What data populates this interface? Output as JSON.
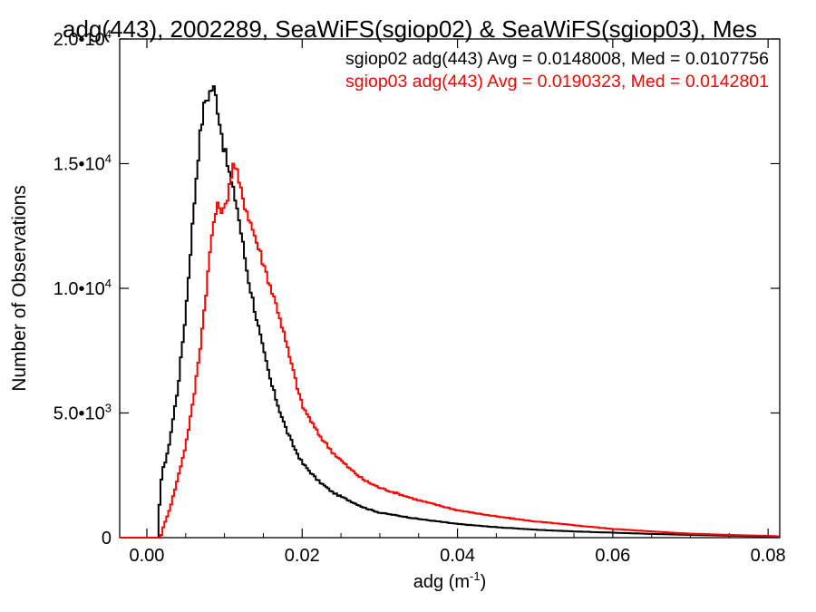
{
  "chart_data": {
    "type": "line",
    "title": "adg(443), 2002289, SeaWiFS(sgiop02) & SeaWiFS(sgiop03), Mes",
    "xlabel": "adg (m",
    "xlabel_sup": "-1",
    "xlabel_tail": ")",
    "ylabel": "Number of Observations",
    "xlim": [
      -0.0035,
      0.0815
    ],
    "ylim": [
      0,
      20000
    ],
    "x_ticks": [
      {
        "value": 0.0,
        "label": "0.00"
      },
      {
        "value": 0.02,
        "label": "0.02"
      },
      {
        "value": 0.04,
        "label": "0.04"
      },
      {
        "value": 0.06,
        "label": "0.06"
      },
      {
        "value": 0.08,
        "label": "0.08"
      }
    ],
    "y_ticks": [
      {
        "value": 0,
        "mant": "0",
        "exp": ""
      },
      {
        "value": 5000,
        "mant": "5.0•10",
        "exp": "3"
      },
      {
        "value": 10000,
        "mant": "1.0•10",
        "exp": "4"
      },
      {
        "value": 15000,
        "mant": "1.5•10",
        "exp": "4"
      },
      {
        "value": 20000,
        "mant": "2.0•10",
        "exp": "4"
      }
    ],
    "grid": false,
    "legend_position": "top-right",
    "series": [
      {
        "name": "sgiop02 adg(443) Avg = 0.0148008, Med = 0.0107756",
        "color": "#000000",
        "x": [
          -0.0035,
          0.0014,
          0.0016,
          0.002,
          0.0025,
          0.003,
          0.004,
          0.005,
          0.006,
          0.0065,
          0.007,
          0.0075,
          0.008,
          0.0085,
          0.0088,
          0.009,
          0.0095,
          0.01,
          0.0105,
          0.011,
          0.0115,
          0.012,
          0.013,
          0.014,
          0.015,
          0.016,
          0.017,
          0.018,
          0.019,
          0.02,
          0.022,
          0.024,
          0.026,
          0.028,
          0.03,
          0.035,
          0.04,
          0.045,
          0.05,
          0.055,
          0.06,
          0.065,
          0.07,
          0.075,
          0.08,
          0.0815
        ],
        "y": [
          0,
          0,
          1200,
          2800,
          3100,
          4000,
          6000,
          9000,
          13000,
          15000,
          16500,
          17500,
          17800,
          18100,
          17800,
          17500,
          16500,
          15500,
          14800,
          14000,
          13500,
          12500,
          10500,
          9000,
          7500,
          6200,
          5200,
          4300,
          3600,
          3000,
          2300,
          1800,
          1500,
          1200,
          1000,
          750,
          550,
          420,
          320,
          250,
          200,
          150,
          110,
          80,
          50,
          40
        ]
      },
      {
        "name": "sgiop03 adg(443) Avg = 0.0190323, Med = 0.0142801",
        "color": "#ff0000",
        "x": [
          -0.0035,
          0.0018,
          0.002,
          0.003,
          0.004,
          0.005,
          0.006,
          0.007,
          0.008,
          0.0085,
          0.009,
          0.0095,
          0.01,
          0.0105,
          0.011,
          0.0113,
          0.0116,
          0.012,
          0.013,
          0.014,
          0.015,
          0.016,
          0.017,
          0.018,
          0.019,
          0.02,
          0.022,
          0.024,
          0.026,
          0.028,
          0.03,
          0.035,
          0.04,
          0.045,
          0.05,
          0.055,
          0.06,
          0.065,
          0.07,
          0.075,
          0.08,
          0.0815
        ],
        "y": [
          0,
          0,
          300,
          1200,
          2400,
          3700,
          5500,
          8000,
          11000,
          12500,
          13200,
          13300,
          13000,
          14000,
          14800,
          15000,
          14600,
          14000,
          13000,
          12000,
          11000,
          10000,
          9000,
          7700,
          6500,
          5300,
          4200,
          3400,
          2800,
          2300,
          2000,
          1500,
          1100,
          850,
          650,
          500,
          350,
          250,
          160,
          110,
          70,
          50
        ]
      }
    ]
  }
}
